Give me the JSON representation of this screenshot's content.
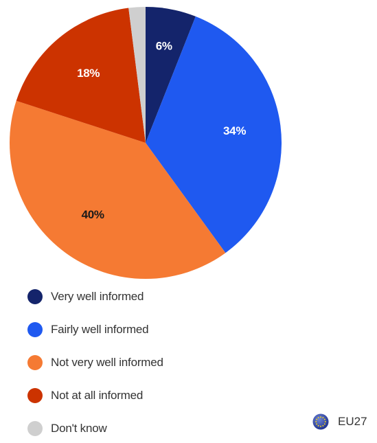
{
  "chart_data": {
    "type": "pie",
    "start_angle_deg": 0,
    "direction": "clockwise",
    "legend_position": "bottom-left",
    "slices": [
      {
        "name": "Very well informed",
        "value": 6,
        "label": "6%",
        "color": "#14246b",
        "label_color": "#ffffff"
      },
      {
        "name": "Fairly well informed",
        "value": 34,
        "label": "34%",
        "color": "#1f59f0",
        "label_color": "#ffffff"
      },
      {
        "name": "Not very well informed",
        "value": 40,
        "label": "40%",
        "color": "#f57a33",
        "label_color": "#1a1a1a"
      },
      {
        "name": "Not at all informed",
        "value": 18,
        "label": "18%",
        "color": "#cc3300",
        "label_color": "#ffffff"
      },
      {
        "name": "Don't know",
        "value": 2,
        "label": "",
        "color": "#cfcfcf",
        "label_color": "#333333"
      }
    ]
  },
  "legend": {
    "items": [
      {
        "label": "Very well informed",
        "color": "#14246b"
      },
      {
        "label": "Fairly well informed",
        "color": "#1f59f0"
      },
      {
        "label": "Not very well informed",
        "color": "#f57a33"
      },
      {
        "label": "Not at all informed",
        "color": "#cc3300"
      },
      {
        "label": "Don't know",
        "color": "#cfcfcf"
      }
    ]
  },
  "region": {
    "label": "EU27",
    "icon": "eu-flag-icon"
  }
}
